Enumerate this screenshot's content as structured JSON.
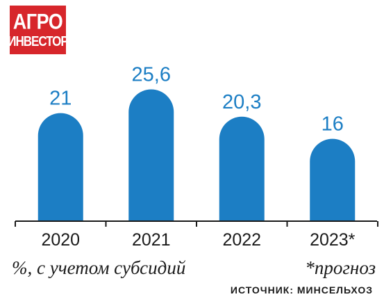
{
  "logo": {
    "line1": "АГРО",
    "line2": "ИНВЕСТОР"
  },
  "colors": {
    "bar": "#1c7ec4",
    "label": "#1c7ec4",
    "axis": "#1a1a1a",
    "logo": "#d7262b"
  },
  "chart_data": {
    "type": "bar",
    "categories": [
      "2020",
      "2021",
      "2022",
      "2023*"
    ],
    "values": [
      21,
      25.6,
      20.3,
      16
    ],
    "value_labels": [
      "21",
      "25,6",
      "20,3",
      "16"
    ],
    "title": "",
    "xlabel": "",
    "ylabel": "",
    "ylim": [
      0,
      27
    ],
    "grid": false,
    "legend": "none"
  },
  "notes": {
    "unit": "%, с учетом субсидий",
    "forecast": "*прогноз",
    "source": "ИСТОЧНИК: МИНСЕЛЬХОЗ"
  }
}
